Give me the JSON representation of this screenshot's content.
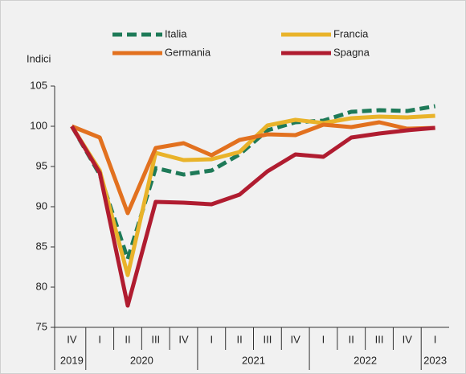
{
  "chart_data": {
    "type": "line",
    "y_axis_label": "Indici",
    "categories": [
      "IV",
      "I",
      "II",
      "III",
      "IV",
      "I",
      "II",
      "III",
      "IV",
      "I",
      "II",
      "III",
      "IV",
      "I"
    ],
    "years": [
      "2019",
      "2020",
      "2020",
      "2020",
      "2020",
      "2021",
      "2021",
      "2021",
      "2021",
      "2022",
      "2022",
      "2022",
      "2022",
      "2023"
    ],
    "ylim": [
      75,
      105
    ],
    "yticks": [
      75,
      80,
      85,
      90,
      95,
      100,
      105
    ],
    "grid": false,
    "series": [
      {
        "name": "Italia",
        "color": "#1e7a58",
        "dashed": true,
        "values": [
          100,
          94,
          83.5,
          94.8,
          94,
          94.5,
          96.5,
          99.5,
          100.5,
          100.7,
          101.8,
          102,
          101.9,
          102.5
        ]
      },
      {
        "name": "Francia",
        "color": "#e9b32a",
        "dashed": false,
        "values": [
          100,
          94.5,
          81.5,
          96.7,
          95.8,
          95.9,
          96.8,
          100.1,
          100.8,
          100.4,
          101,
          101.2,
          101.1,
          101.3
        ]
      },
      {
        "name": "Germania",
        "color": "#e2711f",
        "dashed": false,
        "values": [
          100,
          98.6,
          89.2,
          97.3,
          97.9,
          96.4,
          98.3,
          99,
          98.9,
          100.2,
          99.9,
          100.5,
          99.7,
          99.8
        ]
      },
      {
        "name": "Spagna",
        "color": "#b01c30",
        "dashed": false,
        "values": [
          100,
          94.2,
          77.7,
          90.6,
          90.5,
          90.3,
          91.5,
          94.4,
          96.5,
          96.2,
          98.6,
          99.1,
          99.5,
          99.8
        ]
      }
    ]
  }
}
